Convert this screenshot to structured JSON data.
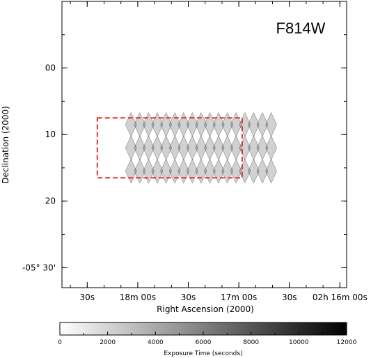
{
  "chart_data": {
    "type": "heatmap",
    "filter_label": "F814W",
    "xlabel": "Right Ascension (2000)",
    "ylabel": "Declination (2000)",
    "x_ticks": [
      {
        "label": "30s",
        "ra_sec": 1050
      },
      {
        "label": "18m 00s",
        "ra_sec": 1020
      },
      {
        "label": "30s",
        "ra_sec": 990
      },
      {
        "label": "17m 00s",
        "ra_sec": 960
      },
      {
        "label": "30s",
        "ra_sec": 930
      },
      {
        "label": "02h 16m 00s",
        "ra_sec": 900
      }
    ],
    "y_ticks": [
      {
        "label": "00",
        "dec_arcmin": 0
      },
      {
        "label": "10",
        "dec_arcmin": 10
      },
      {
        "label": "20",
        "dec_arcmin": 20
      },
      {
        "label": "-05° 30'",
        "dec_arcmin": 30
      }
    ],
    "x_range_ra_sec": [
      1065,
      896
    ],
    "y_range_dec_arcmin": [
      -10,
      33
    ],
    "colorbar": {
      "title": "Exposure Time (seconds)",
      "min": 0,
      "max": 12000,
      "ticks": [
        0,
        2000,
        4000,
        6000,
        8000,
        10000,
        12000
      ],
      "cmap": [
        "#ffffff",
        "#000000"
      ]
    },
    "survey_outline": {
      "style": "dashed",
      "color": "#e8302a",
      "ra_sec": [
        1044,
        958
      ],
      "dec_arcmin": [
        7.5,
        16.5
      ]
    },
    "tile_grid": {
      "ra_sec_start": 1024,
      "ra_sec_step": 5.2,
      "columns": 17,
      "dec_arcmin": [
        8.5,
        12.0,
        15.5
      ],
      "half_width_sec": 3.3,
      "half_height_arcmin": 1.8,
      "tile_opacity": 0.18,
      "line_color": "#1a1a1a"
    }
  }
}
